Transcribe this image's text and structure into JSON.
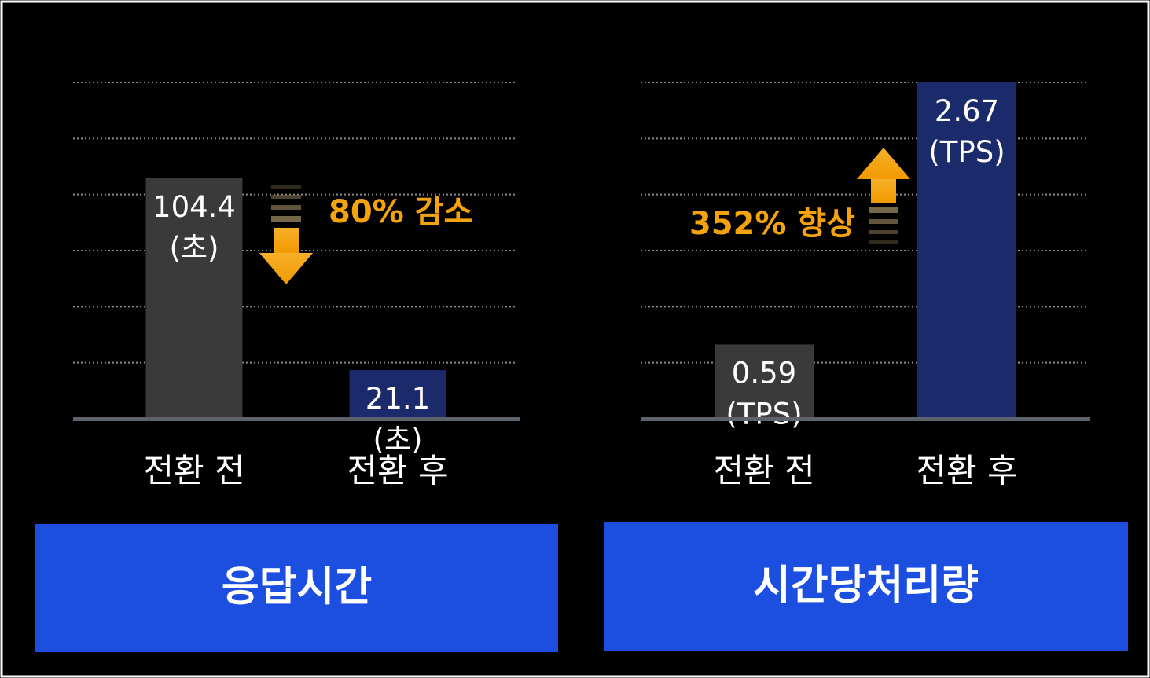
{
  "chart_data": [
    {
      "type": "bar",
      "title": "응답시간",
      "categories": [
        "전환 전",
        "전환 후"
      ],
      "values": [
        104.4,
        21.1
      ],
      "value_labels": [
        "104.4\n(초)",
        "21.1\n(초)"
      ],
      "colors": [
        "#3a3a3a",
        "#1b2a6b"
      ],
      "annotation": "80% 감소",
      "ylim": [
        0,
        146
      ]
    },
    {
      "type": "bar",
      "title": "시간당처리량",
      "categories": [
        "전환 전",
        "전환 후"
      ],
      "values": [
        0.59,
        2.67
      ],
      "value_labels": [
        "0.59\n(TPS)",
        "2.67\n(TPS)"
      ],
      "colors": [
        "#3a3a3a",
        "#1b2a6b"
      ],
      "annotation": "352% 향상",
      "ylim": [
        0,
        2.67
      ]
    }
  ]
}
